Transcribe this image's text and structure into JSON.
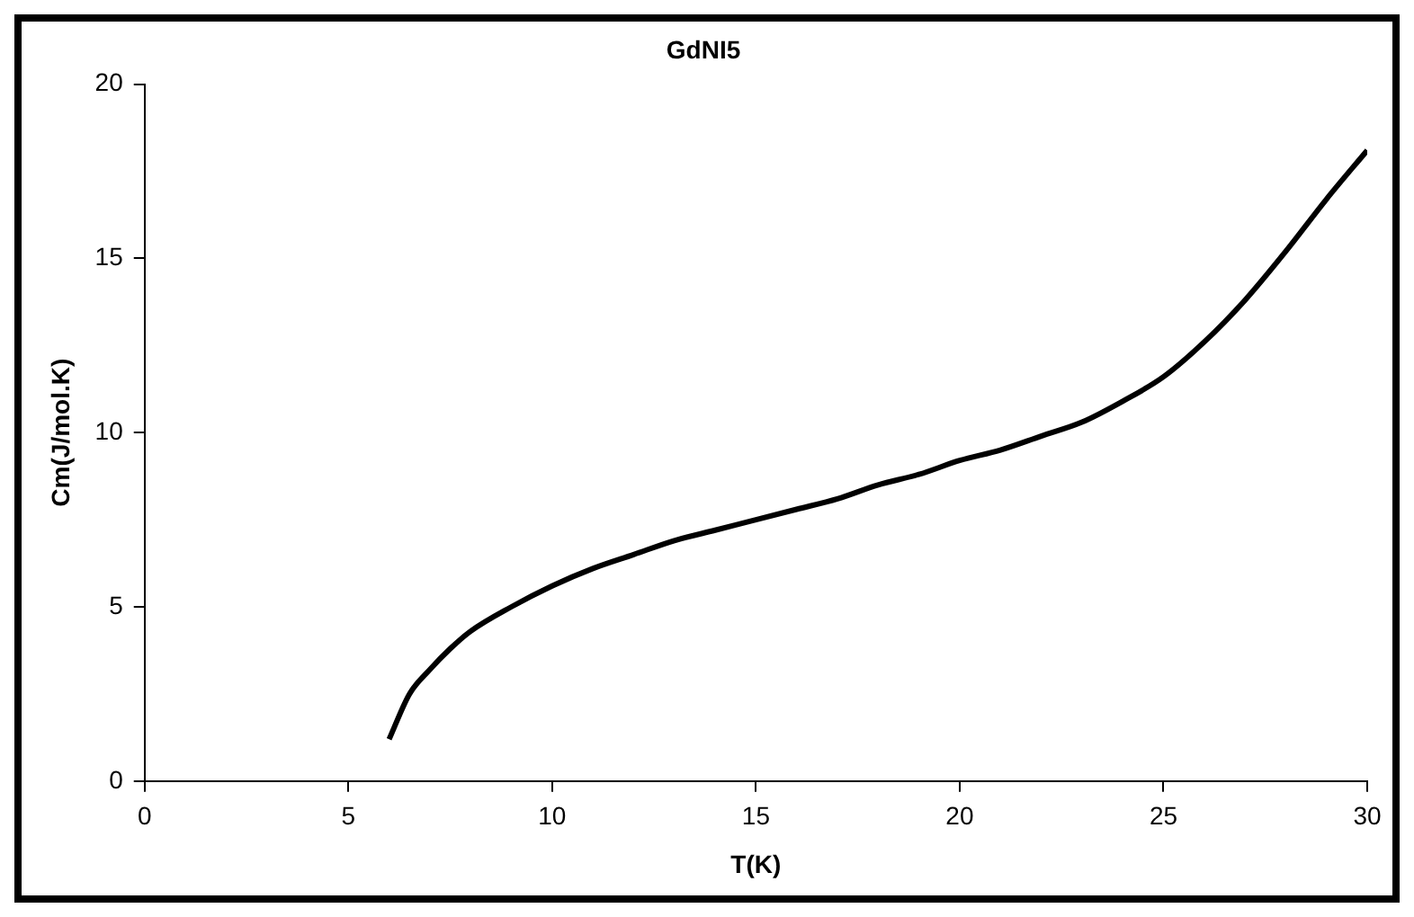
{
  "chart_data": {
    "type": "line",
    "title": "GdNI5",
    "xlabel": "T(K)",
    "ylabel": "Cm(J/mol.K)",
    "x": [
      6,
      6.5,
      7,
      7.5,
      8,
      9,
      10,
      11,
      12,
      13,
      14,
      15,
      16,
      17,
      18,
      19,
      20,
      21,
      22,
      23,
      24,
      25,
      26,
      27,
      28,
      29,
      30
    ],
    "series": [
      {
        "color": "#000000",
        "values": [
          1.2,
          2.5,
          3.2,
          3.8,
          4.3,
          5.0,
          5.6,
          6.1,
          6.5,
          6.9,
          7.2,
          7.5,
          7.8,
          8.1,
          8.5,
          8.8,
          9.2,
          9.5,
          9.9,
          10.3,
          10.9,
          11.6,
          12.6,
          13.8,
          15.2,
          16.7,
          18.1
        ]
      }
    ],
    "xlim": [
      0,
      30
    ],
    "xticks": [
      0,
      5,
      10,
      15,
      20,
      25,
      30
    ],
    "ylim": [
      0,
      20
    ],
    "yticks": [
      0,
      5,
      10,
      15,
      20
    ],
    "grid": false,
    "legend": false,
    "marker": "none",
    "line_style": "solid"
  }
}
